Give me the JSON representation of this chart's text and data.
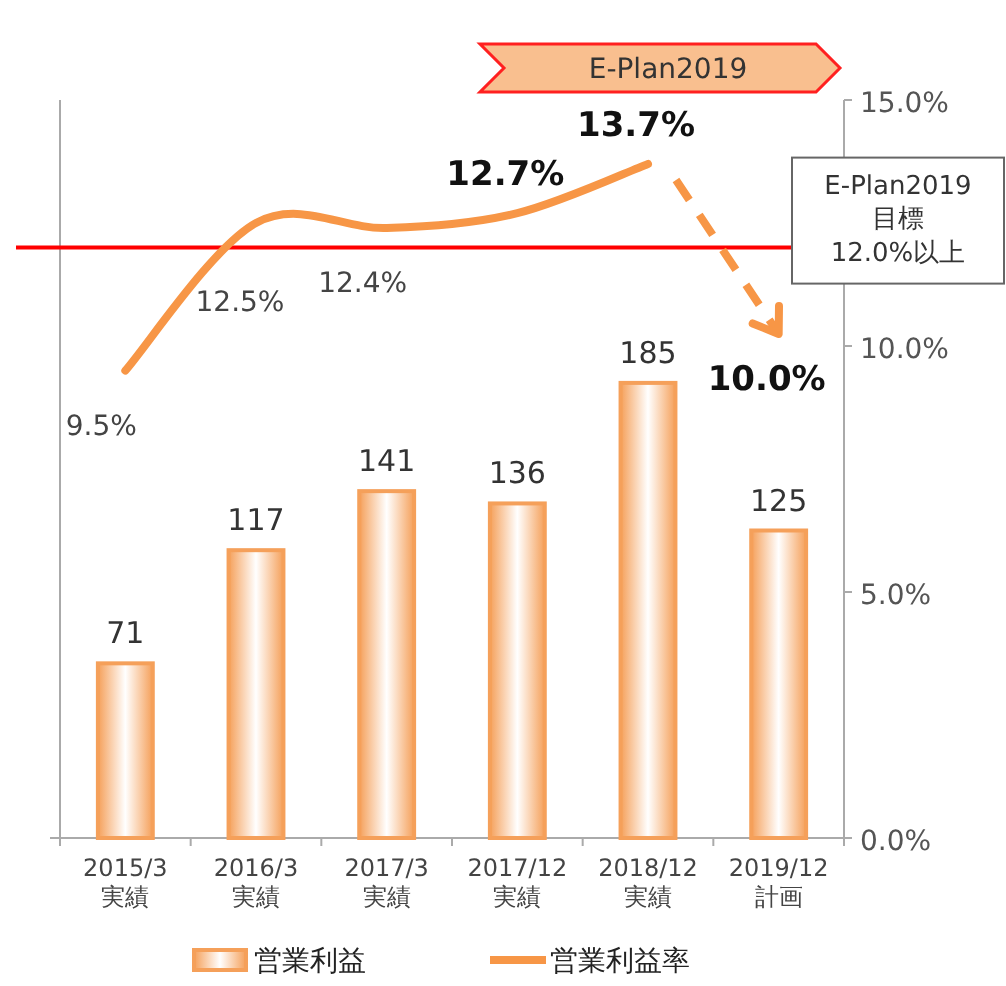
{
  "chart_data": {
    "type": "bar",
    "categories": [
      "2015/3\n実績",
      "2016/3\n実績",
      "2017/3\n実績",
      "2017/12\n実績",
      "2018/12\n実績",
      "2019/12\n計画"
    ],
    "ylim": [
      0,
      300
    ],
    "y2lim": [
      0,
      15
    ],
    "y2ticks": [
      {
        "value": 0,
        "label": "0.0%"
      },
      {
        "value": 5,
        "label": "5.0%"
      },
      {
        "value": 10,
        "label": "10.0%"
      },
      {
        "value": 15,
        "label": "15.0%"
      }
    ],
    "series": [
      {
        "name": "営業利益",
        "color": "#f5a05a",
        "values": [
          71,
          117,
          141,
          136,
          185,
          125
        ],
        "value_labels": [
          "71",
          "117",
          "141",
          "136",
          "185",
          "125"
        ]
      },
      {
        "name": "営業利益率",
        "type": "line",
        "axis": "y2",
        "color": "#f79646",
        "line_style": "solid",
        "values": [
          9.5,
          12.5,
          12.4,
          12.7,
          13.7,
          null
        ],
        "value_labels": [
          "9.5%",
          "12.5%",
          "12.4%",
          "12.7%",
          "13.7%",
          null
        ]
      }
    ],
    "ref_lines": [
      {
        "axis": "y2",
        "value": 12.0,
        "label": "E-Plan2019\n目標\n12.0%以上",
        "color": "#ff0000"
      }
    ],
    "annotations": [
      "E-Plan2019",
      "10.0%"
    ],
    "legend": "bottom"
  }
}
